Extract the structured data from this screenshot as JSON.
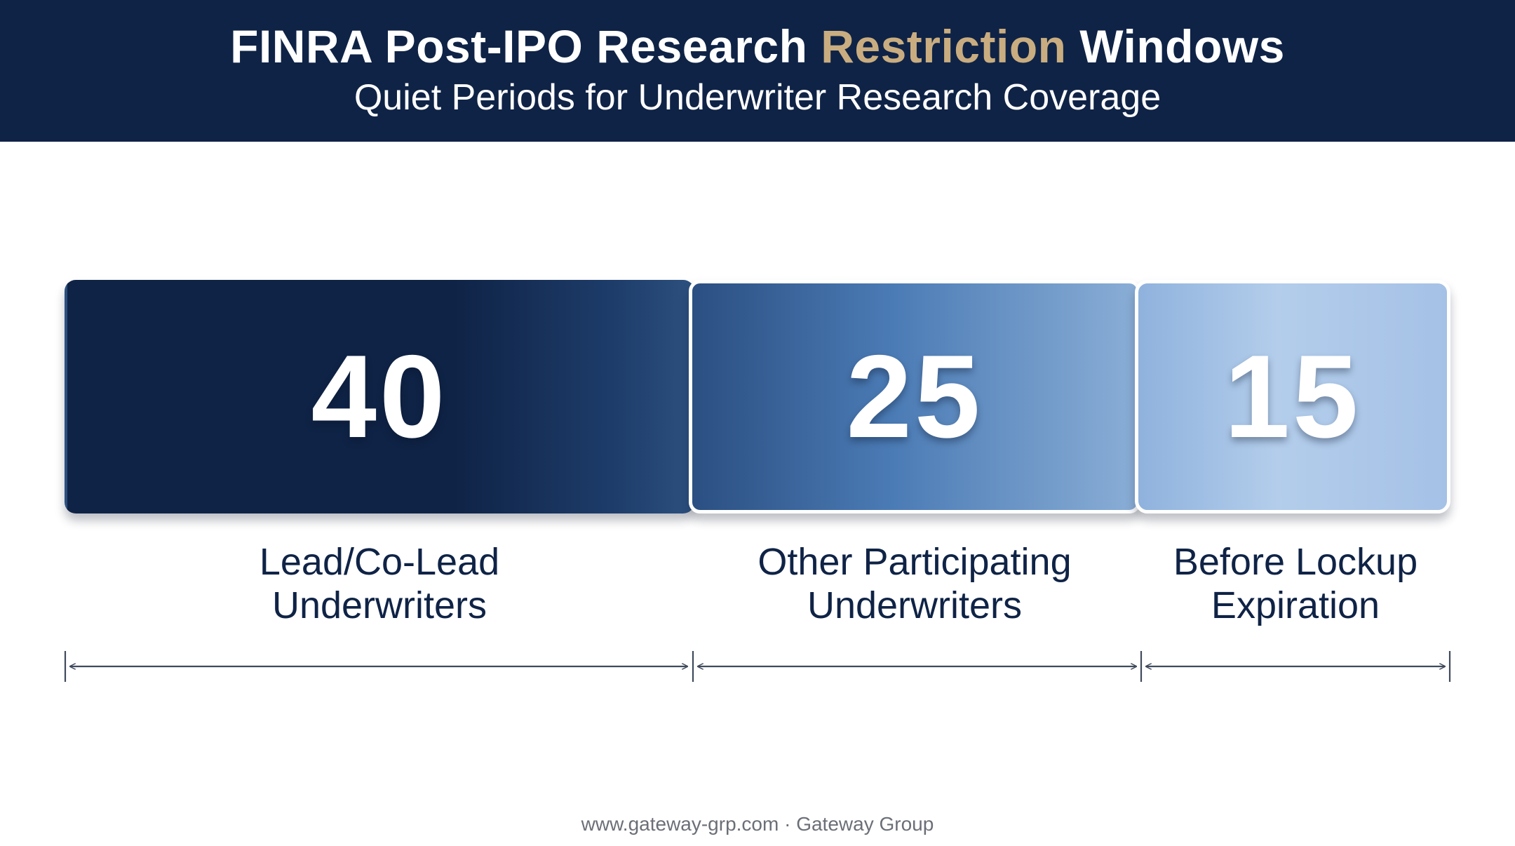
{
  "header": {
    "title_before": "FINRA Post-IPO Research ",
    "title_accent": "Restriction",
    "title_after": " Windows",
    "subtitle": "Quiet Periods for Underwriter Research Coverage"
  },
  "segments": [
    {
      "value": "40",
      "label_line1": "Lead/Co-Lead",
      "label_line2": "Underwriters"
    },
    {
      "value": "25",
      "label_line1": "Other Participating",
      "label_line2": "Underwriters"
    },
    {
      "value": "15",
      "label_line1": "Before Lockup",
      "label_line2": "Expiration"
    }
  ],
  "footer": {
    "text": "www.gateway-grp.com · Gateway Group"
  },
  "colors": {
    "navy": "#0f2346",
    "accent_gold": "#c9ad80",
    "mid_blue": "#4b7bb5",
    "light_blue": "#b3cdeb",
    "dimension_line": "#3f4a5c"
  }
}
